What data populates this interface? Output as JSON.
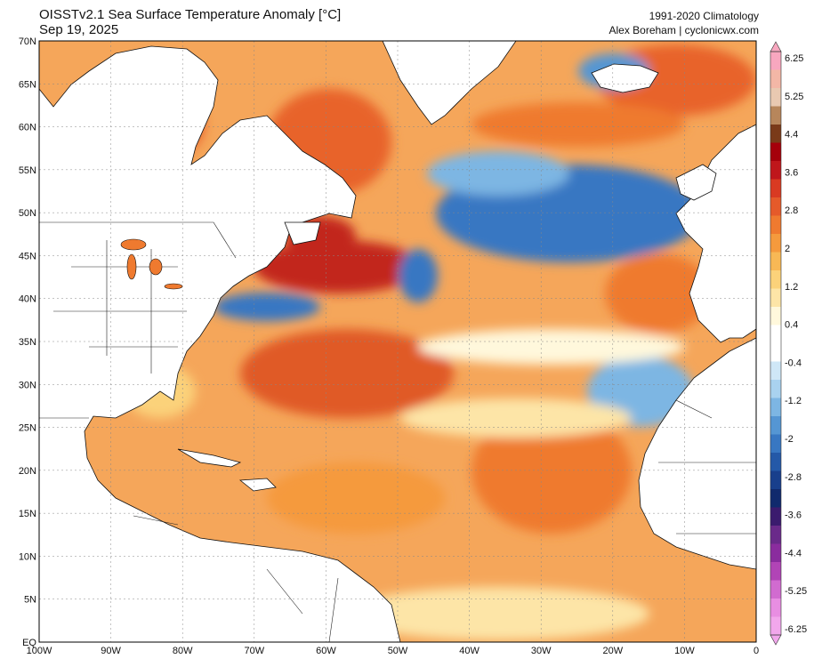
{
  "header": {
    "title_line1": "OISSTv2.1 Sea Surface Temperature Anomaly [°C]",
    "title_line2": "Sep 19, 2025",
    "credit_line1": "1991-2020 Climatology",
    "credit_line2": "Alex Boreham | cyclonicwx.com"
  },
  "axes": {
    "lat_labels": [
      "70N",
      "65N",
      "60N",
      "55N",
      "50N",
      "45N",
      "40N",
      "35N",
      "30N",
      "25N",
      "20N",
      "15N",
      "10N",
      "5N",
      "EQ"
    ],
    "lon_labels": [
      "100W",
      "90W",
      "80W",
      "70W",
      "60W",
      "50W",
      "40W",
      "30W",
      "20W",
      "10W",
      "0"
    ]
  },
  "colorbar": {
    "labels": [
      "6.25",
      "5.25",
      "4.4",
      "3.6",
      "2.8",
      "2",
      "1.2",
      "0.4",
      "-0.4",
      "-1.2",
      "-2",
      "-2.8",
      "-3.6",
      "-4.4",
      "-5.25",
      "-6.25"
    ],
    "colors": [
      "#f8a7bf",
      "#f3b7a6",
      "#e9c9b1",
      "#b7865b",
      "#7a3a19",
      "#a5000b",
      "#bf161b",
      "#d93a22",
      "#e55a2a",
      "#ef7a2f",
      "#f59a3d",
      "#f8b855",
      "#fbd27a",
      "#fde5a7",
      "#fff8dc",
      "#ffffff",
      "#ffffff",
      "#cfe7f7",
      "#a9d2ef",
      "#7db6e3",
      "#5596d3",
      "#3877c2",
      "#2459a8",
      "#183f8c",
      "#102a6d",
      "#3b1b6e",
      "#6a2a8a",
      "#8a2c9e",
      "#b144b6",
      "#d16bd0",
      "#e88ee2",
      "#f2a7ec"
    ]
  },
  "legend": {
    "anomaly_colors": {
      "strong_warm": "#c2271d",
      "warm": "#ef7a2f",
      "mild_warm": "#f8b855",
      "neutral": "#ffffff",
      "cool": "#a9d2ef",
      "strong_cool": "#3877c2"
    }
  }
}
